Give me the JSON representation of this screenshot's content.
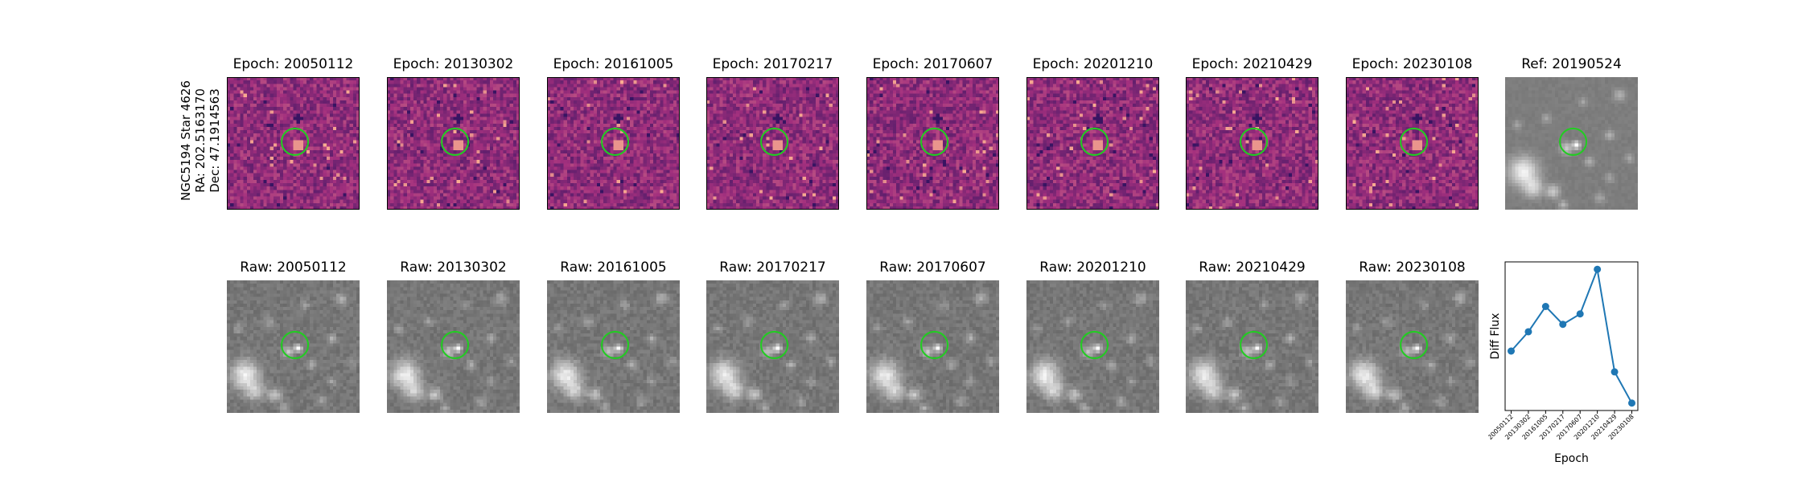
{
  "star": {
    "name": "NGC5194 Star 4626",
    "ra": "RA: 202.5163170",
    "dec": "Dec: 47.1914563"
  },
  "colors": {
    "diff_low": "#2c115f",
    "diff_mid": "#a3307e",
    "diff_high": "#fcae91",
    "circle": "#22cc22",
    "line": "#1f77b4"
  },
  "diff_panels": [
    {
      "title": "Epoch: 20050112"
    },
    {
      "title": "Epoch: 20130302"
    },
    {
      "title": "Epoch: 20161005"
    },
    {
      "title": "Epoch: 20170217"
    },
    {
      "title": "Epoch: 20170607"
    },
    {
      "title": "Epoch: 20201210"
    },
    {
      "title": "Epoch: 20210429"
    },
    {
      "title": "Epoch: 20230108"
    }
  ],
  "ref_panel": {
    "title": "Ref: 20190524"
  },
  "raw_panels": [
    {
      "title": "Raw: 20050112"
    },
    {
      "title": "Raw: 20130302"
    },
    {
      "title": "Raw: 20161005"
    },
    {
      "title": "Raw: 20170217"
    },
    {
      "title": "Raw: 20170607"
    },
    {
      "title": "Raw: 20201210"
    },
    {
      "title": "Raw: 20210429"
    },
    {
      "title": "Raw: 20230108"
    }
  ],
  "chart_data": {
    "type": "line",
    "xlabel": "Epoch",
    "ylabel": "Diff Flux",
    "categories": [
      "20050112",
      "20130302",
      "20161005",
      "20170217",
      "20170607",
      "20201210",
      "20210429",
      "20230108"
    ],
    "values": [
      0.45,
      0.58,
      0.75,
      0.63,
      0.7,
      1.0,
      0.31,
      0.1
    ],
    "ylim": [
      0.05,
      1.05
    ],
    "grid": false,
    "marker": "circle"
  }
}
